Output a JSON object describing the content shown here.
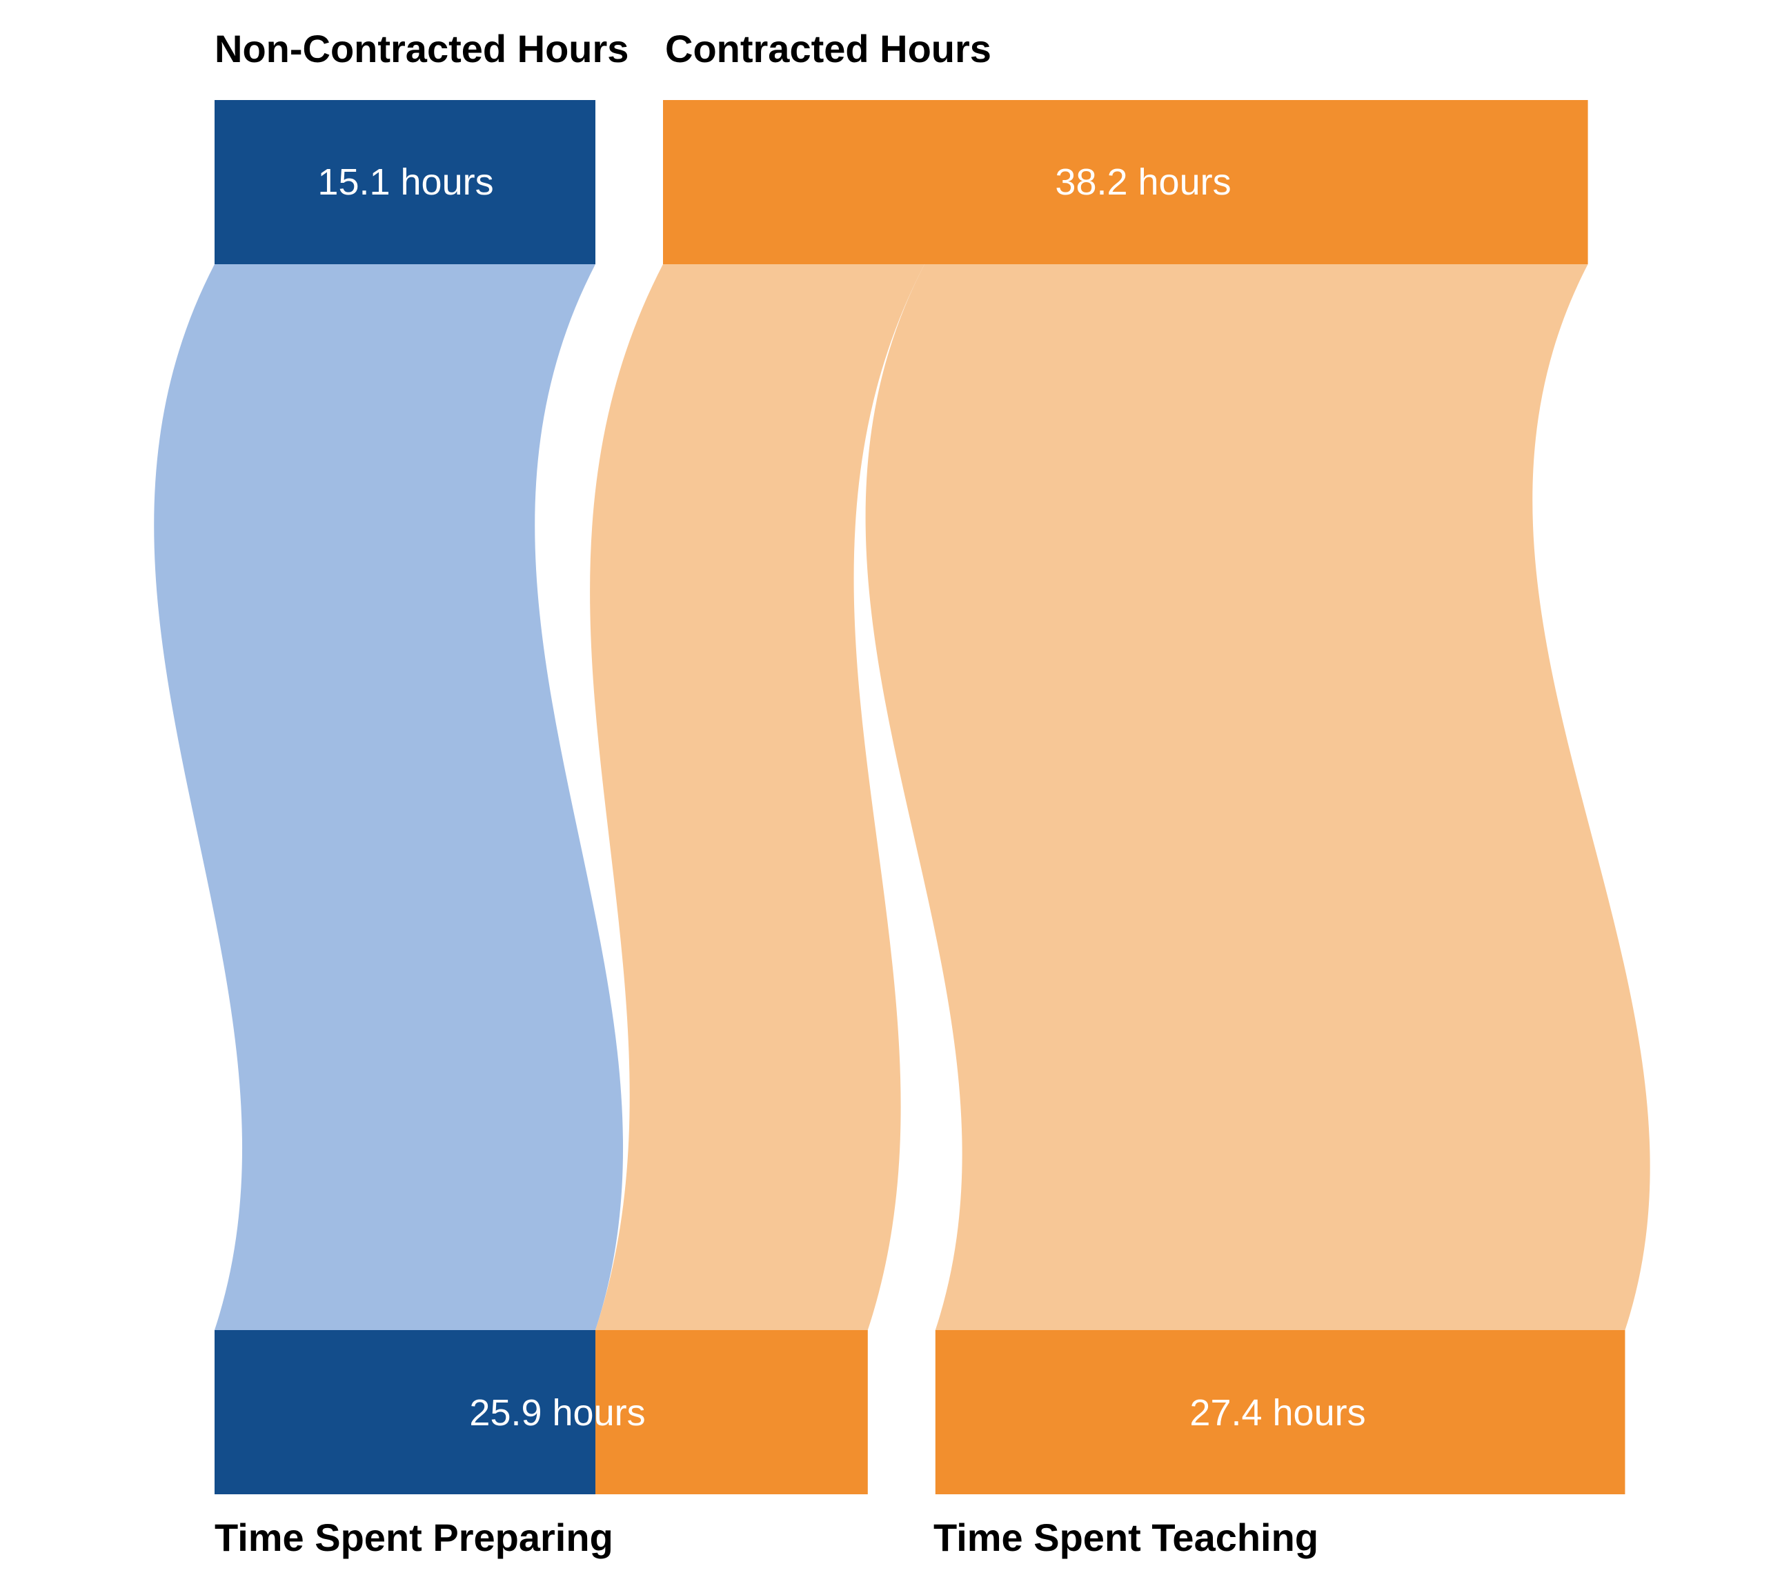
{
  "chart_data": {
    "type": "sankey",
    "sources": [
      {
        "id": "non_contracted",
        "label": "Non-Contracted Hours",
        "value_label": "15.1 hours",
        "value": 15.1,
        "color": "#134d8b"
      },
      {
        "id": "contracted",
        "label": "Contracted Hours",
        "value_label": "38.2 hours",
        "value": 38.2,
        "color": "#f28f2e"
      }
    ],
    "targets": [
      {
        "id": "preparing",
        "label": "Time Spent Preparing",
        "value_label": "25.9 hours",
        "value": 25.9
      },
      {
        "id": "teaching",
        "label": "Time Spent Teaching",
        "value_label": "27.4 hours",
        "value": 27.4
      }
    ],
    "flows": [
      {
        "from": "non_contracted",
        "to": "preparing",
        "value": 15.1,
        "color": "#a0bce3"
      },
      {
        "from": "contracted",
        "to": "preparing",
        "value": 10.8,
        "color": "#f7c796"
      },
      {
        "from": "contracted",
        "to": "teaching",
        "value": 27.4,
        "color": "#f7c796"
      }
    ]
  }
}
